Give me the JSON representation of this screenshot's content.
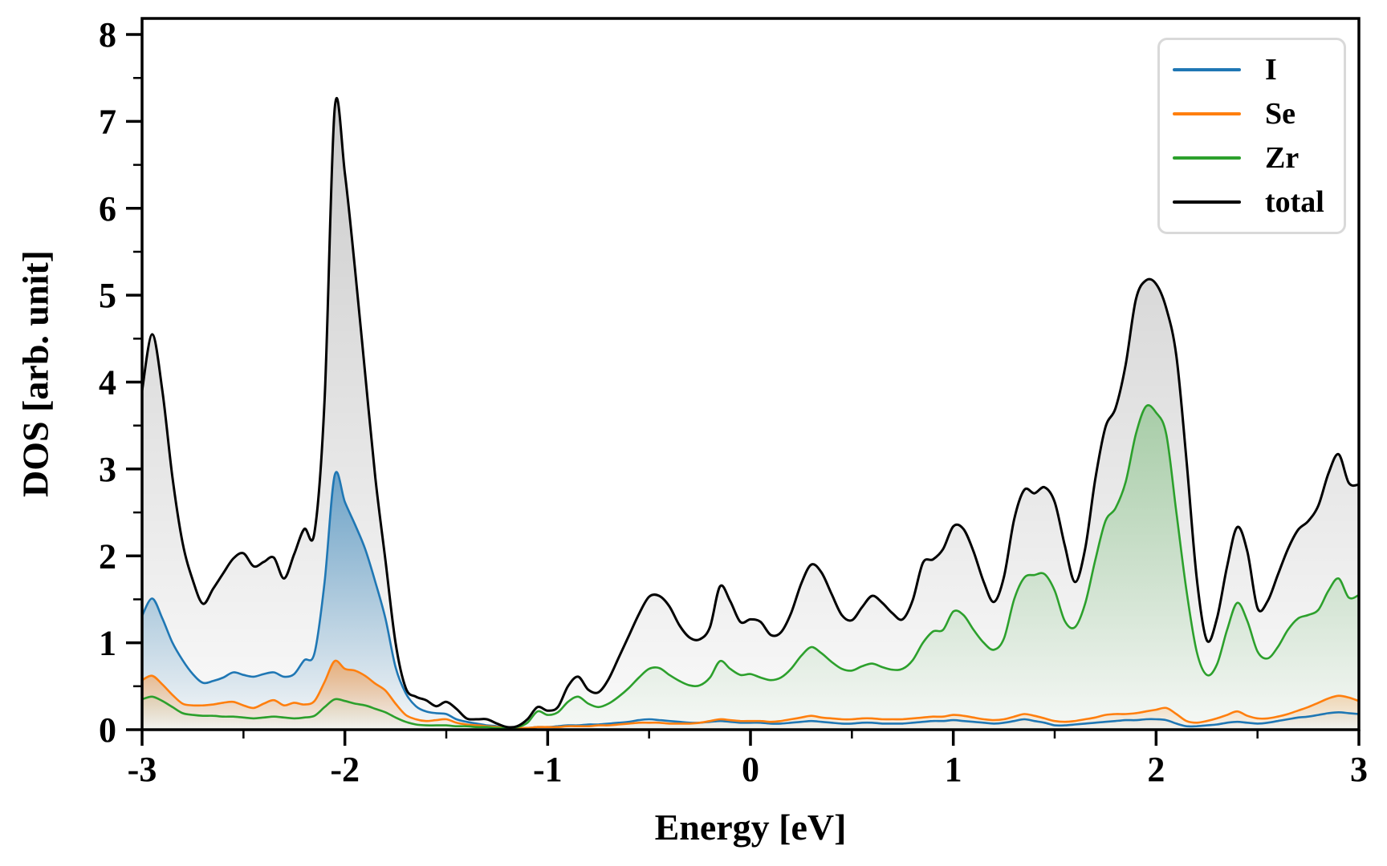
{
  "figure": {
    "background": "#ffffff"
  },
  "axes": {
    "xlabel": "Energy [eV]",
    "ylabel": "DOS [arb. unit]",
    "x_tick_labels": [
      "-3",
      "-2",
      "-1",
      "0",
      "1",
      "2",
      "3"
    ],
    "x_tick_values": [
      -3,
      -2,
      -1,
      0,
      1,
      2,
      3
    ],
    "y_tick_labels": [
      "0",
      "1",
      "2",
      "3",
      "4",
      "5",
      "6",
      "7",
      "8"
    ],
    "y_tick_values": [
      0,
      1,
      2,
      3,
      4,
      5,
      6,
      7,
      8
    ],
    "x_minor_step": 0.5,
    "y_minor_step": 0.5,
    "spine_color": "#000000"
  },
  "legend": {
    "position": "upper right",
    "border_color": "#d9d9d9"
  },
  "chart_data": {
    "type": "line",
    "title": "",
    "xlabel": "Energy [eV]",
    "ylabel": "DOS [arb. unit]",
    "xlim": [
      -3,
      3
    ],
    "ylim": [
      0,
      8.185
    ],
    "grid": false,
    "fill_style": "vertical-gradient-under-curve",
    "legend_position": "upper right",
    "x": [
      -3,
      -2.95,
      -2.9,
      -2.85,
      -2.8,
      -2.75,
      -2.7,
      -2.65,
      -2.6,
      -2.55,
      -2.5,
      -2.45,
      -2.4,
      -2.35,
      -2.3,
      -2.25,
      -2.2,
      -2.15,
      -2.1,
      -2.05,
      -2,
      -1.95,
      -1.9,
      -1.85,
      -1.8,
      -1.75,
      -1.7,
      -1.65,
      -1.6,
      -1.55,
      -1.5,
      -1.45,
      -1.4,
      -1.35,
      -1.3,
      -1.25,
      -1.2,
      -1.15,
      -1.1,
      -1.05,
      -1,
      -0.95,
      -0.9,
      -0.85,
      -0.8,
      -0.75,
      -0.7,
      -0.65,
      -0.6,
      -0.55,
      -0.5,
      -0.45,
      -0.4,
      -0.35,
      -0.3,
      -0.25,
      -0.2,
      -0.15,
      -0.1,
      -0.05,
      0,
      0.05,
      0.1,
      0.15,
      0.2,
      0.25,
      0.3,
      0.35,
      0.4,
      0.45,
      0.5,
      0.55,
      0.6,
      0.65,
      0.7,
      0.75,
      0.8,
      0.85,
      0.9,
      0.95,
      1,
      1.05,
      1.1,
      1.15,
      1.2,
      1.25,
      1.3,
      1.35,
      1.4,
      1.45,
      1.5,
      1.55,
      1.6,
      1.65,
      1.7,
      1.75,
      1.8,
      1.85,
      1.9,
      1.95,
      2,
      2.05,
      2.1,
      2.15,
      2.2,
      2.25,
      2.3,
      2.35,
      2.4,
      2.45,
      2.5,
      2.55,
      2.6,
      2.65,
      2.7,
      2.75,
      2.8,
      2.85,
      2.9,
      2.95,
      3
    ],
    "series": [
      {
        "name": "I",
        "color": "#1f77b4",
        "linewidth": 2.6,
        "fill_top_alpha": 0.6,
        "values": [
          1.31,
          1.51,
          1.28,
          1.0,
          0.8,
          0.64,
          0.54,
          0.56,
          0.6,
          0.66,
          0.63,
          0.61,
          0.64,
          0.66,
          0.61,
          0.64,
          0.8,
          0.88,
          1.7,
          2.93,
          2.62,
          2.36,
          2.08,
          1.7,
          1.28,
          0.72,
          0.42,
          0.27,
          0.21,
          0.19,
          0.18,
          0.12,
          0.09,
          0.07,
          0.05,
          0.04,
          0.02,
          0.02,
          0.02,
          0.03,
          0.03,
          0.04,
          0.05,
          0.05,
          0.06,
          0.06,
          0.07,
          0.08,
          0.09,
          0.11,
          0.12,
          0.11,
          0.1,
          0.09,
          0.08,
          0.08,
          0.09,
          0.1,
          0.09,
          0.08,
          0.08,
          0.08,
          0.07,
          0.07,
          0.08,
          0.09,
          0.1,
          0.09,
          0.08,
          0.07,
          0.07,
          0.08,
          0.08,
          0.07,
          0.07,
          0.07,
          0.08,
          0.09,
          0.1,
          0.1,
          0.11,
          0.1,
          0.09,
          0.08,
          0.07,
          0.08,
          0.1,
          0.12,
          0.1,
          0.08,
          0.05,
          0.05,
          0.06,
          0.07,
          0.08,
          0.09,
          0.1,
          0.11,
          0.11,
          0.12,
          0.12,
          0.11,
          0.07,
          0.04,
          0.04,
          0.05,
          0.06,
          0.08,
          0.09,
          0.08,
          0.07,
          0.08,
          0.1,
          0.12,
          0.14,
          0.15,
          0.17,
          0.19,
          0.2,
          0.19,
          0.18
        ]
      },
      {
        "name": "Se",
        "color": "#ff7f0e",
        "linewidth": 2.6,
        "fill_top_alpha": 0.5,
        "values": [
          0.57,
          0.62,
          0.52,
          0.4,
          0.3,
          0.28,
          0.28,
          0.29,
          0.31,
          0.32,
          0.28,
          0.25,
          0.3,
          0.34,
          0.28,
          0.31,
          0.29,
          0.33,
          0.55,
          0.79,
          0.7,
          0.68,
          0.62,
          0.53,
          0.45,
          0.3,
          0.17,
          0.12,
          0.1,
          0.11,
          0.12,
          0.08,
          0.06,
          0.05,
          0.04,
          0.03,
          0.02,
          0.02,
          0.02,
          0.03,
          0.03,
          0.03,
          0.04,
          0.04,
          0.04,
          0.05,
          0.05,
          0.06,
          0.07,
          0.08,
          0.08,
          0.08,
          0.07,
          0.07,
          0.07,
          0.08,
          0.1,
          0.12,
          0.11,
          0.1,
          0.1,
          0.1,
          0.09,
          0.1,
          0.12,
          0.14,
          0.16,
          0.14,
          0.13,
          0.12,
          0.12,
          0.13,
          0.13,
          0.12,
          0.12,
          0.12,
          0.13,
          0.14,
          0.15,
          0.15,
          0.17,
          0.16,
          0.14,
          0.12,
          0.11,
          0.12,
          0.15,
          0.18,
          0.16,
          0.13,
          0.1,
          0.09,
          0.1,
          0.12,
          0.14,
          0.17,
          0.18,
          0.18,
          0.19,
          0.21,
          0.23,
          0.25,
          0.18,
          0.1,
          0.08,
          0.1,
          0.13,
          0.17,
          0.21,
          0.16,
          0.13,
          0.13,
          0.15,
          0.18,
          0.22,
          0.26,
          0.31,
          0.36,
          0.39,
          0.37,
          0.33
        ]
      },
      {
        "name": "Zr",
        "color": "#2ca02c",
        "linewidth": 2.6,
        "fill_top_alpha": 0.32,
        "values": [
          0.35,
          0.38,
          0.33,
          0.26,
          0.19,
          0.17,
          0.16,
          0.16,
          0.15,
          0.15,
          0.14,
          0.13,
          0.14,
          0.15,
          0.14,
          0.13,
          0.14,
          0.16,
          0.26,
          0.35,
          0.33,
          0.3,
          0.28,
          0.24,
          0.2,
          0.14,
          0.09,
          0.06,
          0.05,
          0.05,
          0.05,
          0.04,
          0.04,
          0.03,
          0.03,
          0.02,
          0.02,
          0.03,
          0.08,
          0.21,
          0.17,
          0.2,
          0.32,
          0.38,
          0.3,
          0.26,
          0.3,
          0.38,
          0.48,
          0.6,
          0.7,
          0.71,
          0.63,
          0.56,
          0.51,
          0.51,
          0.6,
          0.79,
          0.7,
          0.63,
          0.64,
          0.6,
          0.57,
          0.6,
          0.7,
          0.85,
          0.95,
          0.88,
          0.78,
          0.7,
          0.68,
          0.73,
          0.76,
          0.72,
          0.69,
          0.7,
          0.8,
          1.0,
          1.13,
          1.15,
          1.36,
          1.32,
          1.15,
          1.0,
          0.92,
          1.05,
          1.5,
          1.75,
          1.78,
          1.79,
          1.6,
          1.25,
          1.18,
          1.45,
          1.95,
          2.4,
          2.55,
          2.85,
          3.4,
          3.72,
          3.65,
          3.4,
          2.5,
          1.6,
          0.9,
          0.63,
          0.75,
          1.15,
          1.46,
          1.25,
          0.9,
          0.82,
          0.95,
          1.15,
          1.28,
          1.32,
          1.38,
          1.6,
          1.74,
          1.52,
          1.55
        ]
      },
      {
        "name": "total",
        "color": "#000000",
        "linewidth": 3.0,
        "fill_top_alpha": 0.2,
        "values": [
          3.9,
          4.55,
          3.9,
          2.9,
          2.15,
          1.72,
          1.45,
          1.62,
          1.8,
          1.97,
          2.03,
          1.88,
          1.93,
          1.98,
          1.74,
          2.02,
          2.31,
          2.27,
          3.8,
          7.15,
          6.4,
          5.3,
          4.1,
          2.9,
          1.95,
          1.0,
          0.48,
          0.38,
          0.34,
          0.27,
          0.32,
          0.24,
          0.13,
          0.12,
          0.12,
          0.07,
          0.03,
          0.04,
          0.12,
          0.26,
          0.22,
          0.26,
          0.5,
          0.61,
          0.46,
          0.43,
          0.58,
          0.83,
          1.08,
          1.33,
          1.53,
          1.54,
          1.42,
          1.2,
          1.06,
          1.04,
          1.18,
          1.65,
          1.48,
          1.24,
          1.27,
          1.24,
          1.09,
          1.12,
          1.34,
          1.68,
          1.9,
          1.81,
          1.56,
          1.32,
          1.26,
          1.41,
          1.54,
          1.46,
          1.34,
          1.27,
          1.49,
          1.92,
          1.96,
          2.08,
          2.34,
          2.31,
          2.05,
          1.7,
          1.47,
          1.76,
          2.42,
          2.76,
          2.72,
          2.79,
          2.62,
          2.12,
          1.7,
          2.08,
          2.88,
          3.48,
          3.7,
          4.2,
          4.95,
          5.17,
          5.13,
          4.85,
          4.3,
          3.1,
          1.75,
          1.03,
          1.28,
          1.88,
          2.33,
          2.05,
          1.4,
          1.48,
          1.78,
          2.08,
          2.3,
          2.4,
          2.58,
          2.95,
          3.17,
          2.84,
          2.82
        ]
      }
    ]
  }
}
